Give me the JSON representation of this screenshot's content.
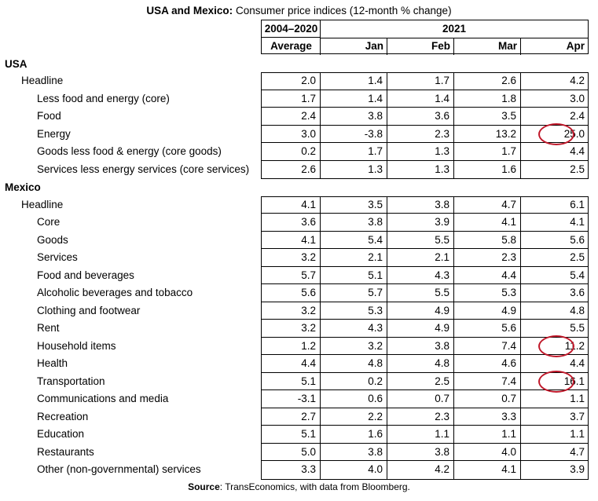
{
  "title": {
    "bold": "USA and Mexico:",
    "rest": " Consumer price indices (12-month % change)"
  },
  "header": {
    "avg_label": "2004–2020",
    "avg_sub": "Average",
    "year": "2021",
    "months": [
      "Jan",
      "Feb",
      "Mar",
      "Apr"
    ]
  },
  "sections": [
    {
      "name": "USA",
      "rows": [
        {
          "label": "Headline",
          "level": 1,
          "values": [
            "2.0",
            "1.4",
            "1.7",
            "2.6",
            "4.2"
          ]
        },
        {
          "label": "Less food and energy (core)",
          "level": 2,
          "values": [
            "1.7",
            "1.4",
            "1.4",
            "1.8",
            "3.0"
          ]
        },
        {
          "label": "Food",
          "level": 2,
          "values": [
            "2.4",
            "3.8",
            "3.6",
            "3.5",
            "2.4"
          ]
        },
        {
          "label": "Energy",
          "level": 2,
          "values": [
            "3.0",
            "-3.8",
            "2.3",
            "13.2",
            "25.0"
          ],
          "highlight": 4
        },
        {
          "label": "Goods less food & energy (core goods)",
          "level": 2,
          "values": [
            "0.2",
            "1.7",
            "1.3",
            "1.7",
            "4.4"
          ]
        },
        {
          "label": "Services less energy services (core services)",
          "level": 2,
          "values": [
            "2.6",
            "1.3",
            "1.3",
            "1.6",
            "2.5"
          ]
        }
      ]
    },
    {
      "name": "Mexico",
      "rows": [
        {
          "label": "Headline",
          "level": 1,
          "values": [
            "4.1",
            "3.5",
            "3.8",
            "4.7",
            "6.1"
          ]
        },
        {
          "label": "Core",
          "level": 2,
          "values": [
            "3.6",
            "3.8",
            "3.9",
            "4.1",
            "4.1"
          ]
        },
        {
          "label": "Goods",
          "level": 2,
          "values": [
            "4.1",
            "5.4",
            "5.5",
            "5.8",
            "5.6"
          ]
        },
        {
          "label": "Services",
          "level": 2,
          "values": [
            "3.2",
            "2.1",
            "2.1",
            "2.3",
            "2.5"
          ]
        },
        {
          "label": "Food and beverages",
          "level": 2,
          "values": [
            "5.7",
            "5.1",
            "4.3",
            "4.4",
            "5.4"
          ]
        },
        {
          "label": "Alcoholic beverages and tobacco",
          "level": 2,
          "values": [
            "5.6",
            "5.7",
            "5.5",
            "5.3",
            "3.6"
          ]
        },
        {
          "label": "Clothing and footwear",
          "level": 2,
          "values": [
            "3.2",
            "5.3",
            "4.9",
            "4.9",
            "4.8"
          ]
        },
        {
          "label": "Rent",
          "level": 2,
          "values": [
            "3.2",
            "4.3",
            "4.9",
            "5.6",
            "5.5"
          ]
        },
        {
          "label": "Household items",
          "level": 2,
          "values": [
            "1.2",
            "3.2",
            "3.8",
            "7.4",
            "11.2"
          ],
          "highlight": 4
        },
        {
          "label": "Health",
          "level": 2,
          "values": [
            "4.4",
            "4.8",
            "4.8",
            "4.6",
            "4.4"
          ]
        },
        {
          "label": "Transportation",
          "level": 2,
          "values": [
            "5.1",
            "0.2",
            "2.5",
            "7.4",
            "16.1"
          ],
          "highlight": 4
        },
        {
          "label": "Communications and media",
          "level": 2,
          "values": [
            "-3.1",
            "0.6",
            "0.7",
            "0.7",
            "1.1"
          ]
        },
        {
          "label": "Recreation",
          "level": 2,
          "values": [
            "2.7",
            "2.2",
            "2.3",
            "3.3",
            "3.7"
          ]
        },
        {
          "label": "Education",
          "level": 2,
          "values": [
            "5.1",
            "1.6",
            "1.1",
            "1.1",
            "1.1"
          ]
        },
        {
          "label": "Restaurants",
          "level": 2,
          "values": [
            "5.0",
            "3.8",
            "3.8",
            "4.0",
            "4.7"
          ]
        },
        {
          "label": "Other (non-governmental) services",
          "level": 2,
          "values": [
            "3.3",
            "4.0",
            "4.2",
            "4.1",
            "3.9"
          ]
        }
      ]
    }
  ],
  "source": {
    "bold": "Source",
    "rest": ": TransEconomics, with data from Bloomberg."
  },
  "colors": {
    "highlight": "#c0182a"
  }
}
